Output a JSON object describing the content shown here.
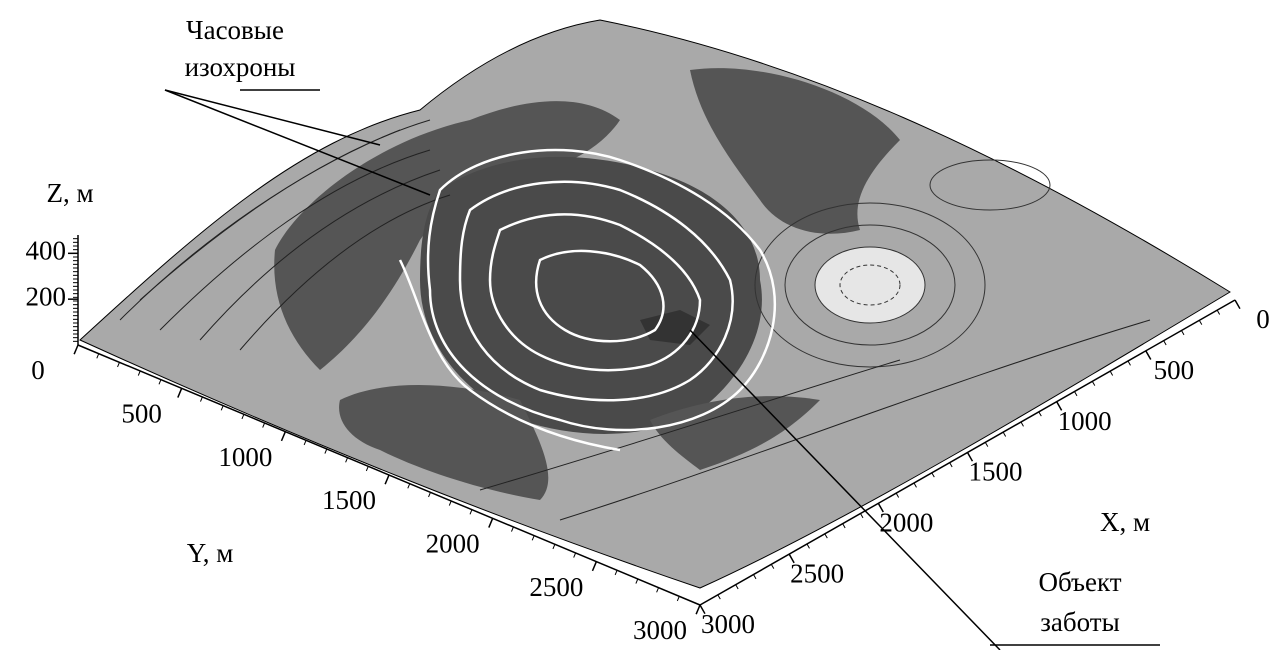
{
  "chart_data": {
    "type": "surface3d",
    "x_label": "X, м",
    "y_label": "Y, м",
    "z_label": "Z, м",
    "xlim": [
      0,
      3000
    ],
    "xticks": [
      0,
      500,
      1000,
      1500,
      2000,
      2500,
      3000
    ],
    "ylim": [
      0,
      3000
    ],
    "yticks": [
      0,
      500,
      1000,
      1500,
      2000,
      2500,
      3000
    ],
    "zlim": [
      0,
      480
    ],
    "zticks": [
      200,
      400
    ],
    "annotations": [
      {
        "lines": [
          "Часовые",
          "изохроны"
        ]
      },
      {
        "lines": [
          "Объект",
          "заботы"
        ]
      }
    ]
  }
}
